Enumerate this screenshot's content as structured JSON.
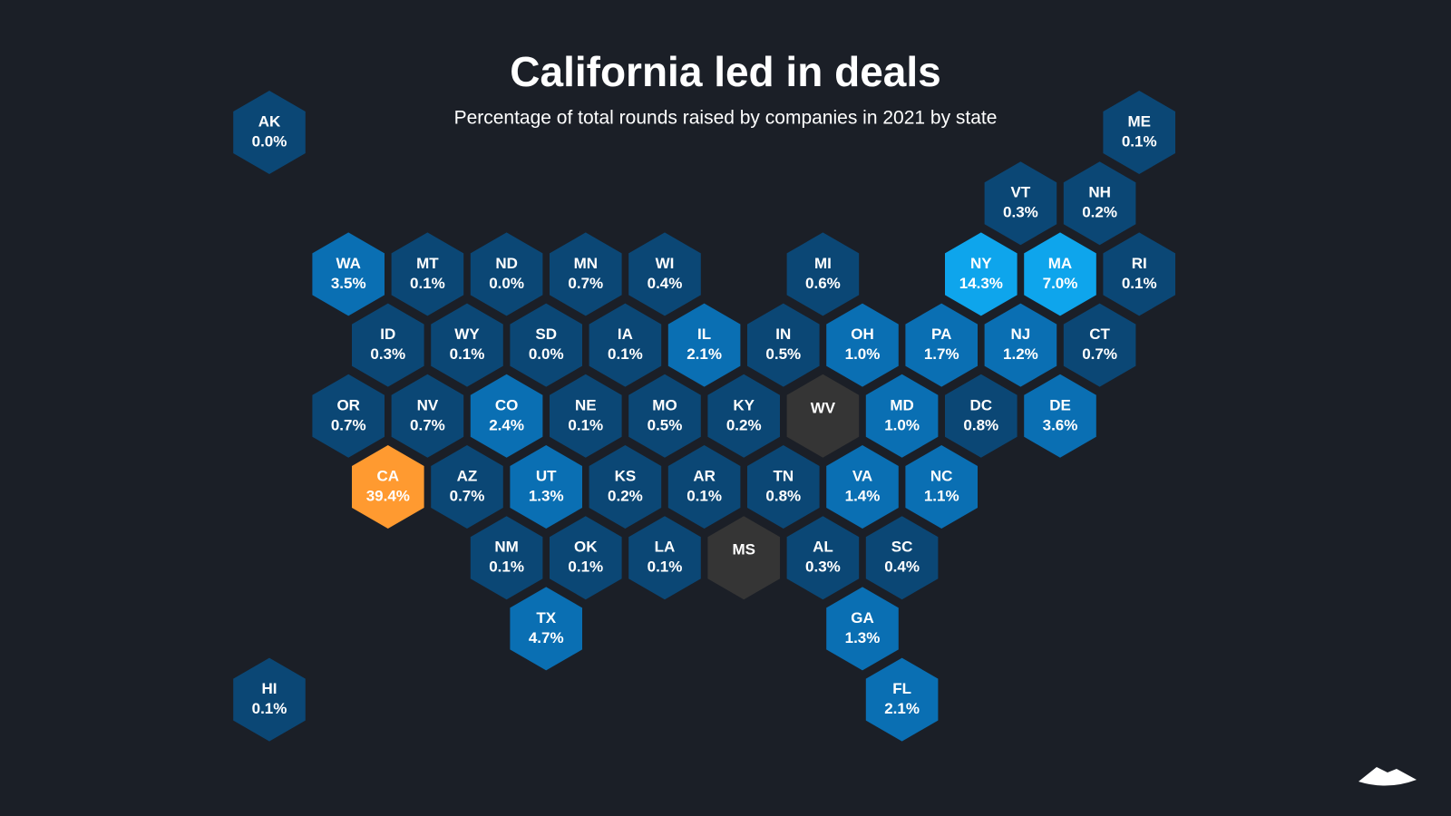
{
  "chart_data": {
    "type": "hexmap",
    "title": "California led in deals",
    "subtitle": "Percentage of total rounds raised by companies in 2021 by state",
    "categories": [
      "AK",
      "ME",
      "VT",
      "NH",
      "WA",
      "MT",
      "ND",
      "MN",
      "WI",
      "MI",
      "NY",
      "MA",
      "RI",
      "ID",
      "WY",
      "SD",
      "IA",
      "IL",
      "IN",
      "OH",
      "PA",
      "NJ",
      "CT",
      "OR",
      "NV",
      "CO",
      "NE",
      "MO",
      "KY",
      "WV",
      "MD",
      "DC",
      "DE",
      "CA",
      "AZ",
      "UT",
      "KS",
      "AR",
      "TN",
      "VA",
      "NC",
      "NM",
      "OK",
      "LA",
      "MS",
      "AL",
      "SC",
      "TX",
      "GA",
      "HI",
      "FL"
    ],
    "values": [
      0.0,
      0.1,
      0.3,
      0.2,
      3.5,
      0.1,
      0.0,
      0.7,
      0.4,
      0.6,
      14.3,
      7.0,
      0.1,
      0.3,
      0.1,
      0.0,
      0.1,
      2.1,
      0.5,
      1.0,
      1.7,
      1.2,
      0.7,
      0.7,
      0.7,
      2.4,
      0.1,
      0.5,
      0.2,
      null,
      1.0,
      0.8,
      3.6,
      39.4,
      0.7,
      1.3,
      0.2,
      0.1,
      0.8,
      1.4,
      1.1,
      0.1,
      0.1,
      0.1,
      null,
      0.3,
      0.4,
      4.7,
      1.3,
      0.1,
      2.1
    ],
    "value_labels": [
      "0.0%",
      "0.1%",
      "0.3%",
      "0.2%",
      "3.5%",
      "0.1%",
      "0.0%",
      "0.7%",
      "0.4%",
      "0.6%",
      "14.3%",
      "7.0%",
      "0.1%",
      "0.3%",
      "0.1%",
      "0.0%",
      "0.1%",
      "2.1%",
      "0.5%",
      "1.0%",
      "1.7%",
      "1.2%",
      "0.7%",
      "0.7%",
      "0.7%",
      "2.4%",
      "0.1%",
      "0.5%",
      "0.2%",
      null,
      "1.0%",
      "0.8%",
      "3.6%",
      "39.4%",
      "0.7%",
      "1.3%",
      "0.2%",
      "0.1%",
      "0.8%",
      "1.4%",
      "1.1%",
      "0.1%",
      "0.1%",
      "0.1%",
      null,
      "0.3%",
      "0.4%",
      "4.7%",
      "1.3%",
      "0.1%",
      "2.1%"
    ],
    "colors": [
      "#0b4775",
      "#0b4775",
      "#0b4775",
      "#0b4775",
      "#0a6fb3",
      "#0b4775",
      "#0b4775",
      "#0b4775",
      "#0b4775",
      "#0b4775",
      "#0ea5ec",
      "#0ea5ec",
      "#0b4775",
      "#0b4775",
      "#0b4775",
      "#0b4775",
      "#0b4775",
      "#0a6fb3",
      "#0b4775",
      "#0a6fb3",
      "#0a6fb3",
      "#0a6fb3",
      "#0b4775",
      "#0b4775",
      "#0b4775",
      "#0a6fb3",
      "#0b4775",
      "#0b4775",
      "#0b4775",
      "#353535",
      "#0a6fb3",
      "#0b4775",
      "#0a6fb3",
      "#ff9a30",
      "#0b4775",
      "#0a6fb3",
      "#0b4775",
      "#0b4775",
      "#0b4775",
      "#0a6fb3",
      "#0a6fb3",
      "#0b4775",
      "#0b4775",
      "#0b4775",
      "#353535",
      "#0b4775",
      "#0b4775",
      "#0a6fb3",
      "#0a6fb3",
      "#0b4775",
      "#0a6fb3"
    ]
  }
}
